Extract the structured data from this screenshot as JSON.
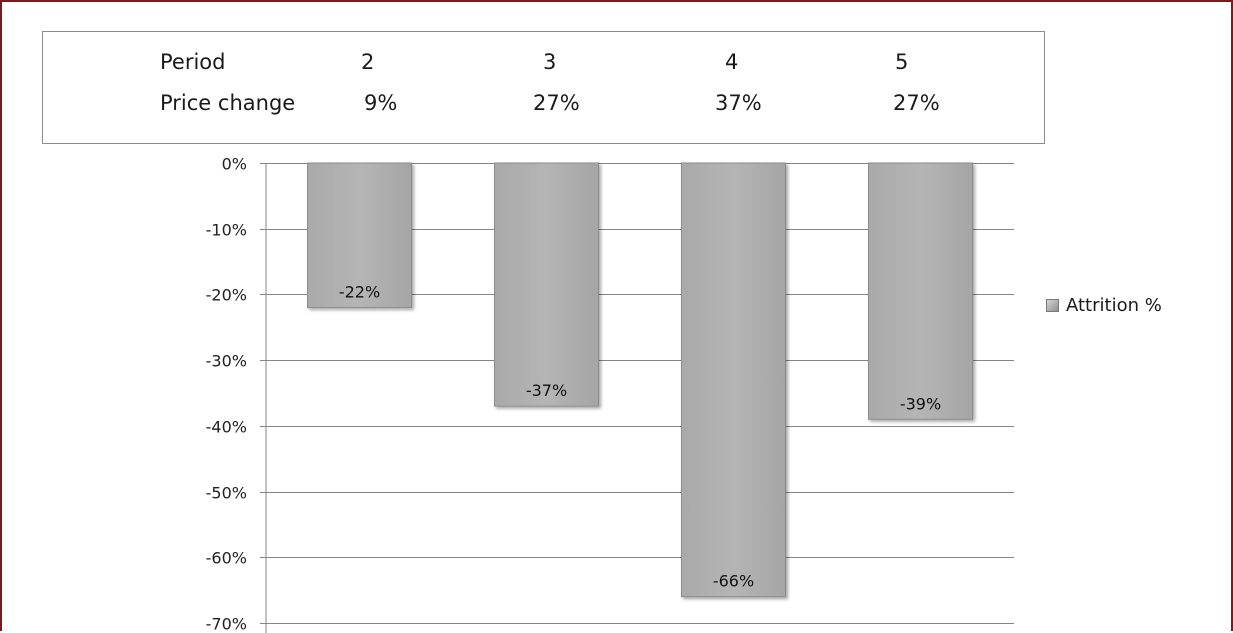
{
  "header": {
    "period_label": "Period",
    "price_change_label": "Price change",
    "periods": [
      "2",
      "3",
      "4",
      "5"
    ],
    "price_changes": [
      "9%",
      "27%",
      "37%",
      "27%"
    ]
  },
  "chart_data": {
    "type": "bar",
    "categories": [
      "2",
      "3",
      "4",
      "5"
    ],
    "series": [
      {
        "name": "Attrition %",
        "values": [
          -22,
          -37,
          -66,
          -39
        ],
        "data_labels": [
          "-22%",
          "-37%",
          "-66%",
          "-39%"
        ]
      }
    ],
    "ylim": [
      -70,
      0
    ],
    "y_ticks": [
      0,
      -10,
      -20,
      -30,
      -40,
      -50,
      -60,
      -70
    ],
    "y_tick_labels": [
      "0%",
      "-10%",
      "-20%",
      "-30%",
      "-40%",
      "-50%",
      "-60%",
      "-70%"
    ],
    "grid": true,
    "legend_position": "right",
    "colors": {
      "bar_fill": "#b5b5b5",
      "bar_stroke": "#8c8c8c",
      "grid": "#868686"
    }
  },
  "legend": {
    "label": "Attrition %"
  },
  "colors": {
    "frame_border": "#7a1a1a"
  }
}
